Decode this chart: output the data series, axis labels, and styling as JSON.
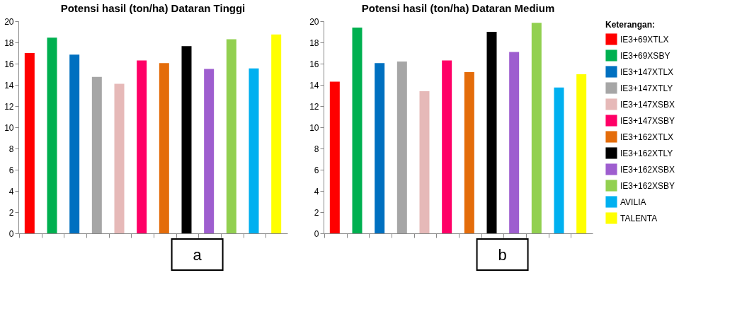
{
  "chart_data": [
    {
      "type": "bar",
      "title": "Potensi hasil (ton/ha) Dataran Tinggi",
      "categories": [
        null,
        null,
        null,
        null,
        null,
        null,
        null,
        null,
        null,
        null,
        null,
        null
      ],
      "ylim": [
        0,
        20
      ],
      "yticks": [
        0,
        2,
        4,
        6,
        8,
        10,
        12,
        14,
        16,
        18,
        20
      ],
      "grid": false,
      "legend": false,
      "annotations": [
        "a"
      ],
      "series": [
        {
          "color": "#ff0000",
          "values": [
            17.0,
            null,
            null,
            null,
            null,
            null,
            null,
            null,
            null,
            null,
            null,
            null
          ]
        },
        {
          "color": "#00b050",
          "values": [
            null,
            18.45,
            null,
            null,
            null,
            null,
            null,
            null,
            null,
            null,
            null,
            null
          ]
        },
        {
          "color": "#0070c0",
          "values": [
            null,
            null,
            16.85,
            null,
            null,
            null,
            null,
            null,
            null,
            null,
            null,
            null
          ]
        },
        {
          "color": "#a6a6a6",
          "values": [
            null,
            null,
            null,
            14.75,
            null,
            null,
            null,
            null,
            null,
            null,
            null,
            null
          ]
        },
        {
          "color": "#e6b9b8",
          "values": [
            null,
            null,
            null,
            null,
            14.1,
            null,
            null,
            null,
            null,
            null,
            null,
            null
          ]
        },
        {
          "color": "#ff0066",
          "values": [
            null,
            null,
            null,
            null,
            null,
            16.3,
            null,
            null,
            null,
            null,
            null,
            null
          ]
        },
        {
          "color": "#e46c0a",
          "values": [
            null,
            null,
            null,
            null,
            null,
            null,
            16.05,
            null,
            null,
            null,
            null,
            null
          ]
        },
        {
          "color": "#000000",
          "values": [
            null,
            null,
            null,
            null,
            null,
            null,
            null,
            17.65,
            null,
            null,
            null,
            null
          ]
        },
        {
          "color": "#9e5ecf",
          "values": [
            null,
            null,
            null,
            null,
            null,
            null,
            null,
            null,
            15.5,
            null,
            null,
            null
          ]
        },
        {
          "color": "#92d050",
          "values": [
            null,
            null,
            null,
            null,
            null,
            null,
            null,
            null,
            null,
            18.3,
            null,
            null
          ]
        },
        {
          "color": "#00b0f0",
          "values": [
            null,
            null,
            null,
            null,
            null,
            null,
            null,
            null,
            null,
            null,
            15.55,
            null
          ]
        },
        {
          "color": "#ffff00",
          "values": [
            null,
            null,
            null,
            null,
            null,
            null,
            null,
            null,
            null,
            null,
            null,
            18.75
          ]
        }
      ]
    },
    {
      "type": "bar",
      "title": "Potensi hasil (ton/ha) Dataran Medium",
      "categories": [
        null,
        null,
        null,
        null,
        null,
        null,
        null,
        null,
        null,
        null,
        null,
        null
      ],
      "ylim": [
        0,
        20
      ],
      "yticks": [
        0,
        2,
        4,
        6,
        8,
        10,
        12,
        14,
        16,
        18,
        20
      ],
      "grid": false,
      "legend": "right",
      "legend_title": "Keterangan:",
      "annotations": [
        "b"
      ],
      "series": [
        {
          "name": "IE3+69XTLX",
          "color": "#ff0000",
          "values": [
            14.3,
            null,
            null,
            null,
            null,
            null,
            null,
            null,
            null,
            null,
            null,
            null
          ]
        },
        {
          "name": "IE3+69XSBY",
          "color": "#00b050",
          "values": [
            null,
            19.4,
            null,
            null,
            null,
            null,
            null,
            null,
            null,
            null,
            null,
            null
          ]
        },
        {
          "name": "IE3+147XTLX",
          "color": "#0070c0",
          "values": [
            null,
            null,
            16.05,
            null,
            null,
            null,
            null,
            null,
            null,
            null,
            null,
            null
          ]
        },
        {
          "name": "IE3+147XTLY",
          "color": "#a6a6a6",
          "values": [
            null,
            null,
            null,
            16.2,
            null,
            null,
            null,
            null,
            null,
            null,
            null,
            null
          ]
        },
        {
          "name": "IE3+147XSBX",
          "color": "#e6b9b8",
          "values": [
            null,
            null,
            null,
            null,
            13.4,
            null,
            null,
            null,
            null,
            null,
            null,
            null
          ]
        },
        {
          "name": "IE3+147XSBY",
          "color": "#ff0066",
          "values": [
            null,
            null,
            null,
            null,
            null,
            16.3,
            null,
            null,
            null,
            null,
            null,
            null
          ]
        },
        {
          "name": "IE3+162XTLX",
          "color": "#e46c0a",
          "values": [
            null,
            null,
            null,
            null,
            null,
            null,
            15.2,
            null,
            null,
            null,
            null,
            null
          ]
        },
        {
          "name": "IE3+162XTLY",
          "color": "#000000",
          "values": [
            null,
            null,
            null,
            null,
            null,
            null,
            null,
            19.0,
            null,
            null,
            null,
            null
          ]
        },
        {
          "name": "IE3+162XSBX",
          "color": "#9e5ecf",
          "values": [
            null,
            null,
            null,
            null,
            null,
            null,
            null,
            null,
            17.1,
            null,
            null,
            null
          ]
        },
        {
          "name": "IE3+162XSBY",
          "color": "#92d050",
          "values": [
            null,
            null,
            null,
            null,
            null,
            null,
            null,
            null,
            null,
            19.85,
            null,
            null
          ]
        },
        {
          "name": "AVILIA",
          "color": "#00b0f0",
          "values": [
            null,
            null,
            null,
            null,
            null,
            null,
            null,
            null,
            null,
            null,
            13.75,
            null
          ]
        },
        {
          "name": "TALENTA",
          "color": "#ffff00",
          "values": [
            null,
            null,
            null,
            null,
            null,
            null,
            null,
            null,
            null,
            null,
            null,
            15.0
          ]
        }
      ]
    }
  ]
}
